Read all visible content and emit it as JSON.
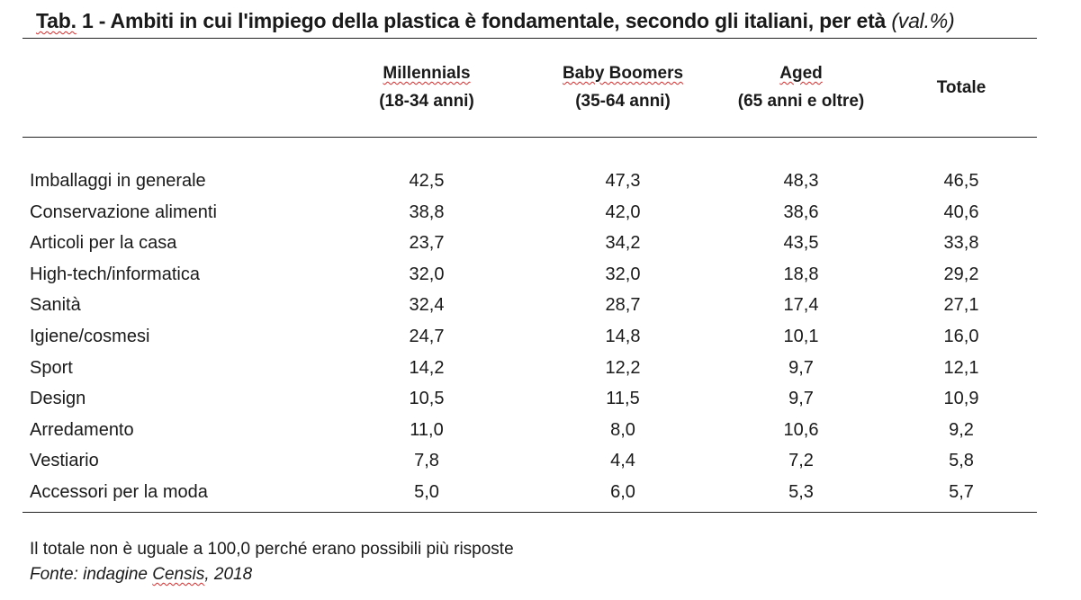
{
  "title": {
    "prefix": "Tab.",
    "main": " 1 - Ambiti in cui l'impiego della plastica è fondamentale, secondo gli italiani, per età ",
    "unit": "(val.%)"
  },
  "columns": [
    {
      "line1": "Millennials",
      "line2": "(18-34 anni)"
    },
    {
      "line1": "Baby Boomers",
      "line2": "(35-64 anni)"
    },
    {
      "line1": "Aged",
      "line2": "(65 anni e oltre)"
    },
    {
      "line1": "Totale",
      "line2": ""
    }
  ],
  "rows": [
    {
      "label": "Imballaggi in generale",
      "values": [
        "42,5",
        "47,3",
        "48,3",
        "46,5"
      ]
    },
    {
      "label": "Conservazione alimenti",
      "values": [
        "38,8",
        "42,0",
        "38,6",
        "40,6"
      ]
    },
    {
      "label": "Articoli per la casa",
      "values": [
        "23,7",
        "34,2",
        "43,5",
        "33,8"
      ]
    },
    {
      "label": "High-tech/informatica",
      "values": [
        "32,0",
        "32,0",
        "18,8",
        "29,2"
      ]
    },
    {
      "label": "Sanità",
      "values": [
        "32,4",
        "28,7",
        "17,4",
        "27,1"
      ]
    },
    {
      "label": "Igiene/cosmesi",
      "values": [
        "24,7",
        "14,8",
        "10,1",
        "16,0"
      ]
    },
    {
      "label": "Sport",
      "values": [
        "14,2",
        "12,2",
        "9,7",
        "12,1"
      ]
    },
    {
      "label": "Design",
      "values": [
        "10,5",
        "11,5",
        "9,7",
        "10,9"
      ]
    },
    {
      "label": "Arredamento",
      "values": [
        "11,0",
        "8,0",
        "10,6",
        "9,2"
      ]
    },
    {
      "label": "Vestiario",
      "values": [
        "7,8",
        "4,4",
        "7,2",
        "5,8"
      ]
    },
    {
      "label": "Accessori per la moda",
      "values": [
        "5,0",
        "6,0",
        "5,3",
        "5,7"
      ]
    }
  ],
  "notes": {
    "line1": "Il totale non è uguale a 100,0 perché erano possibili più risposte",
    "source_prefix": "Fonte: indagine ",
    "source_name": "Censis",
    "source_suffix": ", 2018"
  }
}
